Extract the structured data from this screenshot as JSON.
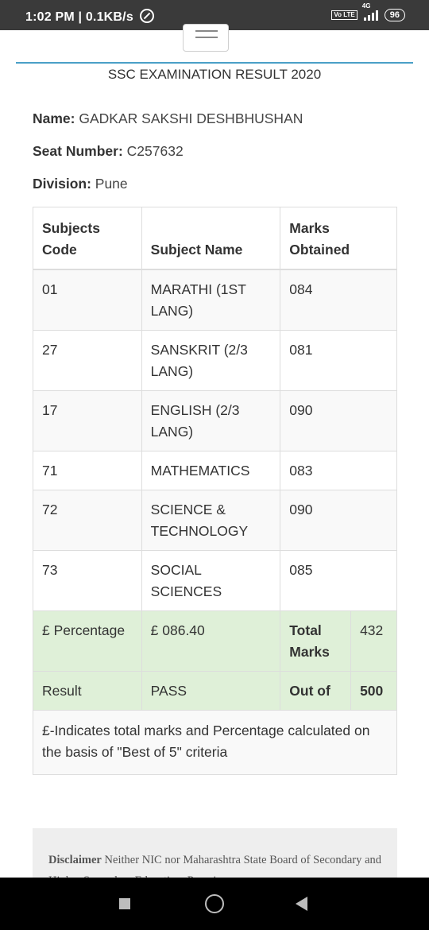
{
  "status": {
    "time_speed": "1:02 PM | 0.1KB/s",
    "volte": "Vo LTE",
    "network": "4G",
    "battery": "96"
  },
  "header": {
    "title": "SSC EXAMINATION RESULT 2020"
  },
  "student": {
    "name_label": "Name:",
    "name": "GADKAR SAKSHI DESHBHUSHAN",
    "seat_label": "Seat Number:",
    "seat": "C257632",
    "division_label": "Division:",
    "division": "Pune"
  },
  "table": {
    "headers": [
      "Subjects Code",
      "Subject Name",
      "Marks Obtained"
    ],
    "rows": [
      {
        "code": "01",
        "name": "MARATHI (1ST LANG)",
        "marks": "084"
      },
      {
        "code": "27",
        "name": "SANSKRIT (2/3 LANG)",
        "marks": "081"
      },
      {
        "code": "17",
        "name": "ENGLISH (2/3 LANG)",
        "marks": "090"
      },
      {
        "code": "71",
        "name": "MATHEMATICS",
        "marks": "083"
      },
      {
        "code": "72",
        "name": "SCIENCE & TECHNOLOGY",
        "marks": "090"
      },
      {
        "code": "73",
        "name": "SOCIAL SCIENCES",
        "marks": "085"
      }
    ],
    "summary": {
      "percentage_label": "£ Percentage",
      "percentage": "£ 086.40",
      "total_label": "Total Marks",
      "total": "432",
      "result_label": "Result",
      "result": "PASS",
      "outof_label": "Out of",
      "outof": "500"
    },
    "note": "£-Indicates total marks and Percentage calculated on the basis of \"Best of 5\" criteria"
  },
  "disclaimer": {
    "label": "Disclaimer",
    "text": "Neither NIC nor Maharashtra State Board of Secondary and Higher Secondary Education, Pune is"
  },
  "colors": {
    "status_bar": "#3a3a3a",
    "rule": "#4a9fc7",
    "summary_bg": "#dff0d8"
  }
}
